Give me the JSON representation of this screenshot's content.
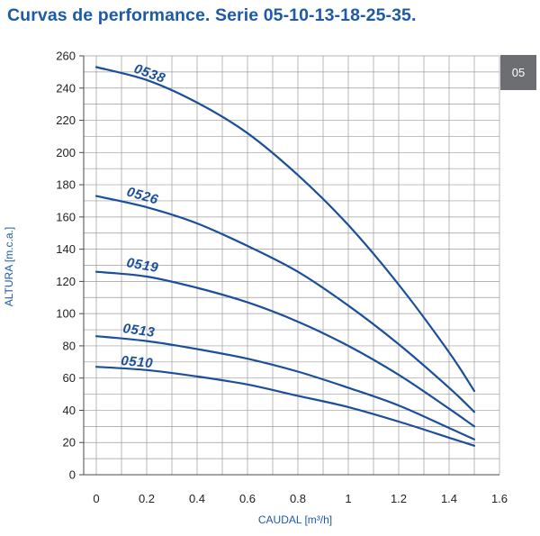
{
  "section_tab": {
    "label": "05"
  },
  "colors": {
    "title": "#1d5aa8",
    "curve": "#1b4f9c",
    "axis_title": "#1d5aa8",
    "section_tab_bg": "#6d6e71"
  },
  "chart_data": {
    "type": "line",
    "title": "Curvas de performance. Serie 05-10-13-18-25-35.",
    "xlabel": "CAUDAL [m³/h]",
    "ylabel": "ALTURA [m.c.a.]",
    "xlim": [
      -0.05,
      1.6
    ],
    "ylim": [
      0,
      260
    ],
    "xticks": [
      "0",
      "0.2",
      "0.4",
      "0.6",
      "0.8",
      "1",
      "1.2",
      "1.4",
      "1.6"
    ],
    "yticks": [
      "0",
      "20",
      "40",
      "60",
      "80",
      "100",
      "120",
      "140",
      "160",
      "180",
      "200",
      "220",
      "240",
      "260"
    ],
    "grid": true,
    "legend": "labels on curves",
    "x": [
      0,
      0.2,
      0.4,
      0.6,
      0.8,
      1.0,
      1.2,
      1.4,
      1.5
    ],
    "series": [
      {
        "name": "0538",
        "values": [
          253,
          245,
          231,
          212,
          186,
          155,
          118,
          76,
          52
        ]
      },
      {
        "name": "0526",
        "values": [
          173,
          166,
          156,
          142,
          126,
          105,
          81,
          54,
          39
        ]
      },
      {
        "name": "0519",
        "values": [
          126,
          123,
          116,
          107,
          95,
          80,
          62,
          41,
          30
        ]
      },
      {
        "name": "0513",
        "values": [
          86,
          83,
          78,
          72,
          64,
          54,
          43,
          29,
          22
        ]
      },
      {
        "name": "0510",
        "values": [
          67,
          65,
          61,
          56,
          49,
          42,
          33,
          23,
          18
        ]
      }
    ]
  }
}
